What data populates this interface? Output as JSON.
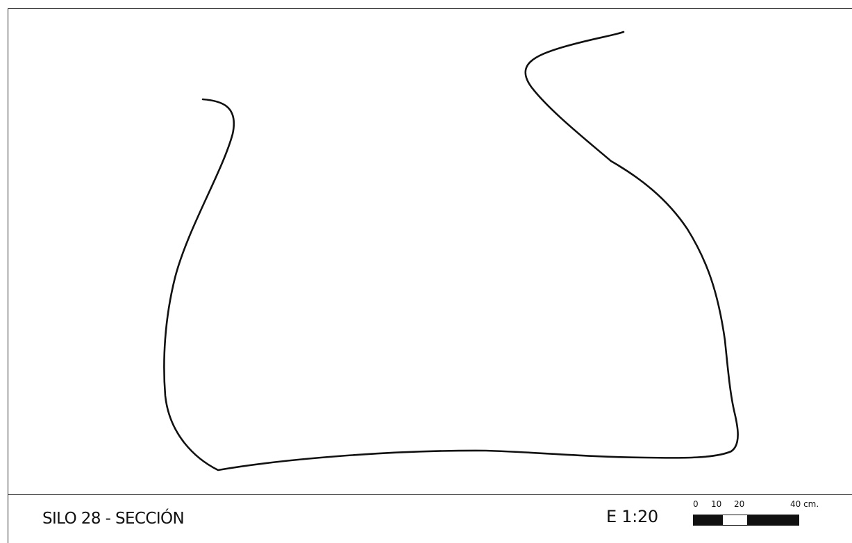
{
  "title": "SILO 28 - SECCIÓN",
  "scale": {
    "label": "E 1:20",
    "ticks": [
      "0",
      "10",
      "20",
      "40 cm."
    ],
    "segments": [
      "black",
      "black",
      "white",
      "black"
    ]
  },
  "colors": {
    "line": "#111111",
    "background": "#ffffff"
  }
}
